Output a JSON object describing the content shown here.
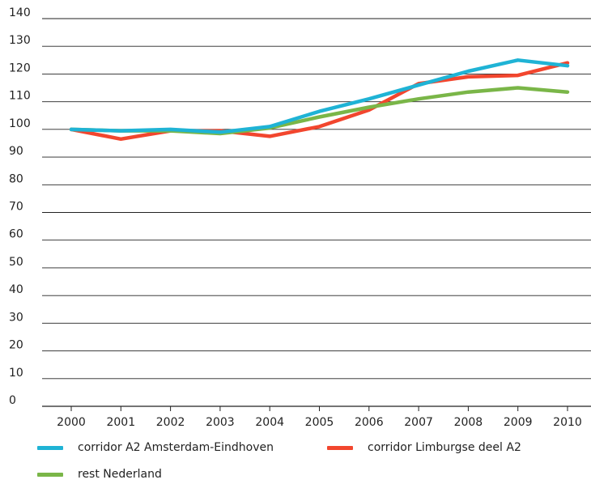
{
  "chart_data": {
    "type": "line",
    "title": "",
    "xlabel": "",
    "ylabel": "",
    "x": [
      "2000",
      "2001",
      "2002",
      "2003",
      "2004",
      "2005",
      "2006",
      "2007",
      "2008",
      "2009",
      "2010"
    ],
    "ylim": [
      0,
      140
    ],
    "yticks": [
      0,
      10,
      20,
      30,
      40,
      50,
      60,
      70,
      80,
      90,
      100,
      110,
      120,
      130,
      140
    ],
    "grid": "horizontal",
    "legend_position": "bottom",
    "series": [
      {
        "name": "corridor A2 Amsterdam-Eindhoven",
        "color": "#1fb3d5",
        "values": [
          100,
          99.5,
          100,
          99,
          101,
          106.5,
          111,
          116,
          121,
          125,
          123
        ]
      },
      {
        "name": "corridor Limburgse deel A2",
        "color": "#f2462e",
        "values": [
          100,
          96.5,
          99.5,
          99.5,
          97.5,
          101,
          107,
          116.5,
          119,
          119.5,
          124
        ]
      },
      {
        "name": "rest Nederland",
        "color": "#7ab648",
        "values": [
          100,
          99.5,
          99.5,
          98.5,
          100.5,
          104.5,
          108,
          111,
          113.5,
          115,
          113.5
        ]
      }
    ]
  }
}
